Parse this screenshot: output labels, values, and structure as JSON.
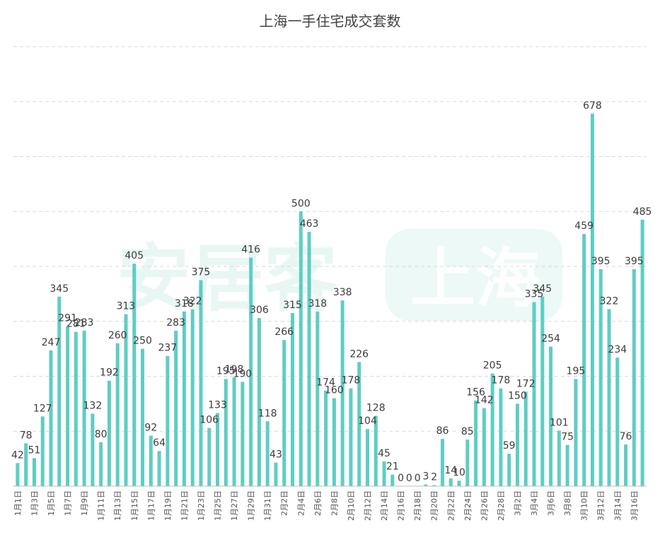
{
  "chart_data": {
    "type": "bar",
    "title": "上海一手住宅成交套数",
    "xlabel": "",
    "ylabel": "",
    "ylim": [
      0,
      800
    ],
    "grid": true,
    "bar_color": "#5fcdc3",
    "categories": [
      "1月1日",
      "1月2日",
      "1月3日",
      "1月4日",
      "1月5日",
      "1月6日",
      "1月7日",
      "1月8日",
      "1月9日",
      "1月10日",
      "1月11日",
      "1月12日",
      "1月13日",
      "1月14日",
      "1月15日",
      "1月16日",
      "1月17日",
      "1月18日",
      "1月19日",
      "1月20日",
      "1月21日",
      "1月22日",
      "1月23日",
      "1月24日",
      "1月25日",
      "1月26日",
      "1月27日",
      "1月28日",
      "1月29日",
      "1月30日",
      "1月31日",
      "2月1日",
      "2月2日",
      "2月3日",
      "2月4日",
      "2月5日",
      "2月6日",
      "2月7日",
      "2月8日",
      "2月9日",
      "2月10日",
      "2月11日",
      "2月12日",
      "2月13日",
      "2月14日",
      "2月15日",
      "2月16日",
      "2月17日",
      "2月18日",
      "2月19日",
      "2月20日",
      "2月21日",
      "2月22日",
      "2月23日",
      "2月24日",
      "2月25日",
      "2月26日",
      "2月27日",
      "2月28日",
      "3月1日",
      "3月2日",
      "3月3日",
      "3月4日",
      "3月5日",
      "3月6日",
      "3月7日",
      "3月8日",
      "3月9日",
      "3月10日",
      "3月11日",
      "3月12日",
      "3月13日",
      "3月14日",
      "3月15日",
      "3月16日",
      "3月17日"
    ],
    "tick_labels": [
      "1月1日",
      "1月3日",
      "1月5日",
      "1月7日",
      "1月9日",
      "1月11日",
      "1月13日",
      "1月15日",
      "1月17日",
      "1月19日",
      "1月21日",
      "1月23日",
      "1月25日",
      "1月27日",
      "1月29日",
      "1月31日",
      "2月2日",
      "2月4日",
      "2月6日",
      "2月8日",
      "2月10日",
      "2月12日",
      "2月14日",
      "2月16日",
      "2月18日",
      "2月20日",
      "2月22日",
      "2月24日",
      "2月26日",
      "2月28日",
      "3月2日",
      "3月4日",
      "3月6日",
      "3月8日",
      "3月10日",
      "3月12日",
      "3月14日",
      "3月16日"
    ],
    "values": [
      42,
      78,
      51,
      127,
      247,
      345,
      291,
      281,
      283,
      132,
      80,
      192,
      260,
      313,
      405,
      250,
      92,
      64,
      237,
      283,
      318,
      322,
      375,
      106,
      133,
      195,
      198,
      190,
      416,
      306,
      118,
      43,
      266,
      315,
      500,
      463,
      318,
      174,
      160,
      338,
      178,
      226,
      104,
      128,
      45,
      21,
      0,
      0,
      0,
      3,
      2,
      86,
      14,
      10,
      85,
      156,
      142,
      205,
      178,
      59,
      150,
      172,
      335,
      345,
      254,
      101,
      75,
      195,
      459,
      678,
      395,
      322,
      234,
      76,
      395,
      485
    ]
  },
  "watermark": {
    "brand_text": "安居客",
    "city_text": "上海"
  }
}
